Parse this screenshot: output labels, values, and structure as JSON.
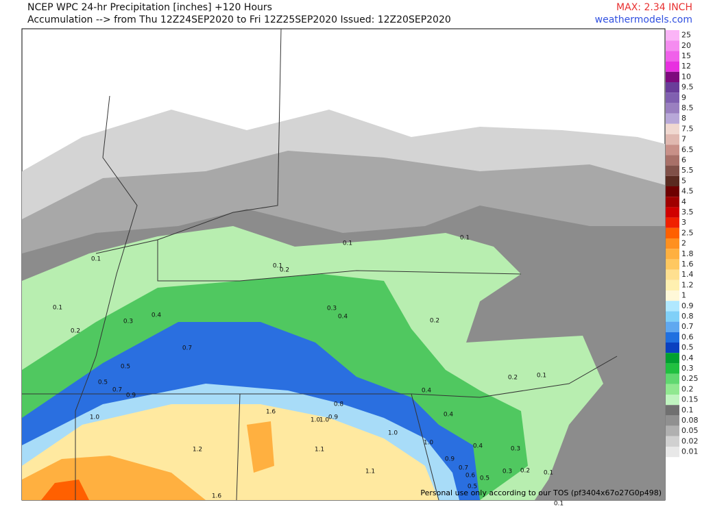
{
  "header": {
    "title": "NCEP WPC 24-hr Precipitation [inches] +120 Hours",
    "subtitle": "Accumulation --> from Thu 12Z24SEP2020 to Fri 12Z25SEP2020   Issued: 12Z20SEP2020",
    "max": "MAX: 2.34 INCH",
    "site": "weathermodels.com"
  },
  "legend": {
    "values": [
      25,
      20,
      15,
      12,
      10,
      9.5,
      9,
      8.5,
      8,
      7.5,
      7,
      6.5,
      6,
      5.5,
      5,
      4.5,
      4,
      3.5,
      3,
      2.5,
      2,
      1.8,
      1.6,
      1.4,
      1.2,
      1,
      0.9,
      0.8,
      0.7,
      0.6,
      0.5,
      0.4,
      0.3,
      0.25,
      0.2,
      0.15,
      0.1,
      0.08,
      0.05,
      0.02,
      0.01
    ],
    "colors": [
      "#fbb4f7",
      "#f58cf0",
      "#f060ea",
      "#e830e0",
      "#7e0a7e",
      "#6a3d9a",
      "#8060b0",
      "#9a80c0",
      "#b8a8d8",
      "#f0d8d0",
      "#e0b8b0",
      "#c89088",
      "#a87068",
      "#805048",
      "#5a2a20",
      "#6e0000",
      "#a00000",
      "#d00000",
      "#f02000",
      "#ff6000",
      "#ff9020",
      "#ffb040",
      "#ffc860",
      "#ffe090",
      "#fff0b0",
      "#fff8d8",
      "#b0e8ff",
      "#80d0f8",
      "#60a8f0",
      "#2070e0",
      "#0a40c0",
      "#00a030",
      "#20c040",
      "#60d870",
      "#90e890",
      "#c0f4c0",
      "#707070",
      "#909090",
      "#b0b0b0",
      "#d0d0d0",
      "#e8e8e8"
    ]
  },
  "map": {
    "labels": [
      "0.1",
      "0.1",
      "0.1",
      "0.1",
      "0.2",
      "0.1",
      "0.2",
      "0.3",
      "0.4",
      "0.3",
      "0.4",
      "0.2",
      "0.7",
      "0.5",
      "0.5",
      "0.7",
      "0.9",
      "0.2",
      "0.1",
      "0.4",
      "0.8",
      "0.4",
      "1.6",
      "1.0",
      "1.0",
      "0.9",
      "1.0",
      "1.0",
      "1.0",
      "1.2",
      "1.1",
      "0.4",
      "0.3",
      "0.9",
      "0.7",
      "0.6",
      "0.5",
      "0.5",
      "1.1",
      "0.3",
      "0.2",
      "0.1",
      "1.6",
      "0.1"
    ],
    "footer": "Personal use only according to our TOS (pf3404x67o27G0p498)"
  }
}
